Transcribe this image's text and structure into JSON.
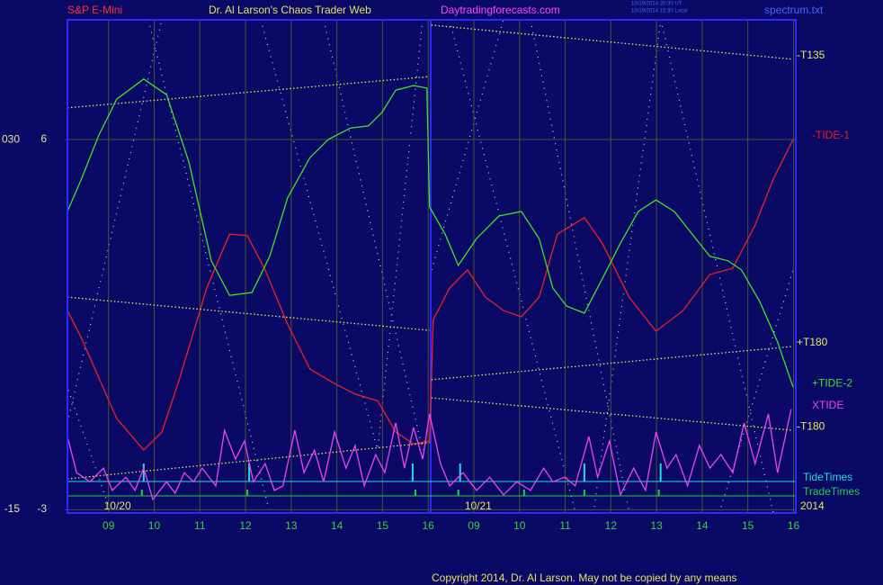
{
  "header": {
    "left": "S&P E-Mini",
    "center": "Dr. Al Larson's Chaos Trader Web",
    "site": "Daytradingforecasts.com",
    "stamp_ut": "10/19/2014 20:30 UT",
    "stamp_local": "10/19/2014 15:30 Local",
    "file": "spectrum.txt"
  },
  "footer": {
    "copyright": "Copyright 2014, Dr. Al Larson. May not be copied by any means"
  },
  "chart_data": {
    "type": "line",
    "xlim": [
      0.1,
      16.05
    ],
    "ylim": [
      -3.08,
      8.91
    ],
    "y2lim": [
      -15.4,
      44.6
    ],
    "yticks": [
      6,
      -3
    ],
    "y2ticks": [
      {
        "value": 30,
        "label": "030"
      },
      -15
    ],
    "xticks": [
      {
        "value": 1,
        "label": "09"
      },
      {
        "value": 2,
        "label": "10"
      },
      {
        "value": 3,
        "label": "11"
      },
      {
        "value": 4,
        "label": "12"
      },
      {
        "value": 5,
        "label": "13"
      },
      {
        "value": 6,
        "label": "14"
      },
      {
        "value": 7,
        "label": "15"
      },
      {
        "value": 8,
        "label": "16"
      },
      {
        "value": 9,
        "label": "09"
      },
      {
        "value": 10,
        "label": "10"
      },
      {
        "value": 11,
        "label": "11"
      },
      {
        "value": 12,
        "label": "12"
      },
      {
        "value": 13,
        "label": "13"
      },
      {
        "value": 14,
        "label": "14"
      },
      {
        "value": 15,
        "label": "15"
      },
      {
        "value": 16,
        "label": "16"
      }
    ],
    "dates": [
      {
        "value": 0.9,
        "label": "10/20"
      },
      {
        "value": 8.8,
        "label": "10/21"
      }
    ],
    "year": "2014",
    "grid": true,
    "series": [
      {
        "name": "-T135",
        "color": "#e8e860",
        "style": "dotted",
        "x": [
          0.1,
          8.03,
          8.05,
          8.07,
          15.99
        ],
        "values": [
          6.77,
          7.53,
          null,
          8.78,
          7.95
        ]
      },
      {
        "name": "-TIDE-1",
        "color": "#ee2020",
        "style": "solid",
        "x": [
          0.1,
          0.4,
          0.79,
          1.18,
          1.77,
          2.17,
          2.56,
          3.15,
          3.65,
          4.04,
          4.43,
          4.92,
          5.41,
          5.91,
          6.4,
          6.89,
          7.29,
          7.68,
          8.03,
          8.11,
          8.47,
          8.86,
          9.25,
          9.65,
          10.04,
          10.43,
          10.83,
          11.42,
          11.81,
          12.4,
          12.99,
          13.58,
          14.17,
          14.67,
          15.16,
          15.55,
          15.99
        ],
        "values": [
          1.84,
          1.19,
          0.2,
          -0.78,
          -1.55,
          -1.11,
          0.2,
          2.39,
          3.7,
          3.66,
          2.83,
          1.51,
          0.42,
          0.09,
          -0.19,
          -0.35,
          -1.11,
          -1.4,
          -1.33,
          1.62,
          2.39,
          2.83,
          2.17,
          1.84,
          1.69,
          2.17,
          3.7,
          4.1,
          3.48,
          2.17,
          1.34,
          1.84,
          2.72,
          2.87,
          3.92,
          5.02,
          6.0
        ]
      },
      {
        "name": "+T180",
        "color": "#e8e860",
        "style": "dotted",
        "x": [
          0.1,
          8.03,
          8.05,
          8.07,
          15.99
        ],
        "values": [
          -2.25,
          -1.37,
          null,
          0.16,
          0.97
        ]
      },
      {
        "name": "+TIDE-2",
        "color": "#44e022",
        "style": "solid",
        "x": [
          0.1,
          0.4,
          0.79,
          1.18,
          1.77,
          2.27,
          2.76,
          3.25,
          3.65,
          4.14,
          4.53,
          4.92,
          5.41,
          5.81,
          6.3,
          6.69,
          6.99,
          7.29,
          7.68,
          7.97,
          8.03,
          8.37,
          8.66,
          9.06,
          9.55,
          10.04,
          10.43,
          10.73,
          11.03,
          11.42,
          11.81,
          12.21,
          12.6,
          12.99,
          13.39,
          13.78,
          14.17,
          14.57,
          14.86,
          15.26,
          15.65,
          15.99
        ],
        "values": [
          4.25,
          5.02,
          6.11,
          6.98,
          7.47,
          7.09,
          5.45,
          3.05,
          2.21,
          2.28,
          3.16,
          4.58,
          5.56,
          6.0,
          6.28,
          6.33,
          6.66,
          7.2,
          7.31,
          7.25,
          4.36,
          3.7,
          2.94,
          3.59,
          4.14,
          4.25,
          3.59,
          2.39,
          1.95,
          1.78,
          2.61,
          3.48,
          4.25,
          4.53,
          4.25,
          3.7,
          3.16,
          3.05,
          2.83,
          2.06,
          1.08,
          -0.02
        ]
      },
      {
        "name": "XTIDE",
        "color": "#ee44ee",
        "style": "solid",
        "x": [
          0.1,
          0.3,
          0.59,
          0.89,
          1.08,
          1.38,
          1.58,
          1.77,
          1.97,
          2.27,
          2.46,
          2.66,
          2.86,
          3.05,
          3.35,
          3.54,
          3.78,
          3.98,
          4.17,
          4.43,
          4.63,
          4.82,
          5.08,
          5.28,
          5.51,
          5.71,
          5.95,
          6.2,
          6.4,
          6.6,
          6.85,
          7.05,
          7.29,
          7.48,
          7.68,
          7.88,
          8.03,
          8.27,
          8.47,
          8.76,
          9.06,
          9.35,
          9.65,
          9.94,
          10.24,
          10.53,
          10.73,
          10.99,
          11.22,
          11.52,
          11.71,
          11.97,
          12.21,
          12.5,
          12.76,
          12.99,
          13.23,
          13.43,
          13.68,
          13.94,
          14.17,
          14.41,
          14.67,
          14.92,
          15.16,
          15.45,
          15.65,
          15.95
        ],
        "values": [
          -1.22,
          -2.1,
          -2.32,
          -1.99,
          -2.53,
          -2.21,
          -2.53,
          -1.99,
          -2.75,
          -2.32,
          -2.6,
          -2.1,
          -2.32,
          -1.99,
          -2.42,
          -1.07,
          -1.77,
          -1.33,
          -2.32,
          -1.88,
          -2.53,
          -2.42,
          -1.07,
          -2.1,
          -1.55,
          -2.32,
          -1.11,
          -1.99,
          -1.44,
          -2.42,
          -1.66,
          -2.1,
          -0.89,
          -1.99,
          -1.0,
          -1.77,
          -0.67,
          -1.88,
          -2.42,
          -2.1,
          -2.53,
          -2.21,
          -2.64,
          -2.32,
          -2.53,
          -1.99,
          -2.32,
          -2.21,
          -2.42,
          -1.22,
          -2.21,
          -1.33,
          -2.64,
          -1.99,
          -2.53,
          -1.11,
          -1.99,
          -1.66,
          -2.42,
          -1.44,
          -1.99,
          -1.66,
          -2.1,
          -0.89,
          -1.88,
          -0.67,
          -2.1,
          -0.56
        ]
      },
      {
        "name": "-T180",
        "color": "#e8e860",
        "style": "dotted",
        "x": [
          0.1,
          8.03,
          8.05,
          8.07,
          15.99
        ],
        "values": [
          2.17,
          1.36,
          null,
          -0.28,
          -1.07
        ]
      }
    ],
    "events": [
      {
        "name": "TideTimes",
        "color": "#22dddd",
        "x": [
          1.77,
          4.08,
          7.66,
          8.7,
          11.42,
          13.09
        ]
      },
      {
        "name": "TradeTimes",
        "color": "#22cc44",
        "x": [
          1.73,
          4.04,
          7.72,
          8.66,
          10.1,
          11.42,
          13.05
        ]
      }
    ]
  }
}
